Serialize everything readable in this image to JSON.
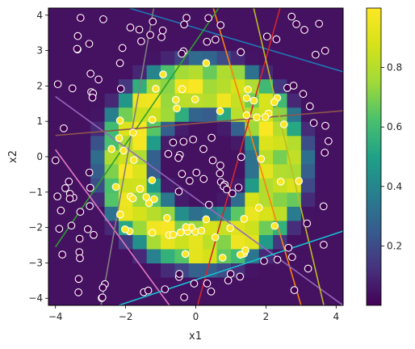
{
  "chart_data": {
    "type": "heatmap",
    "title": "",
    "xlabel": "x1",
    "ylabel": "x2",
    "xlim": [
      -4.2,
      4.2
    ],
    "ylim": [
      -4.2,
      4.2
    ],
    "x_ticks": [
      -4,
      -2,
      0,
      2,
      4
    ],
    "y_ticks": [
      -4,
      -3,
      -2,
      -1,
      0,
      1,
      2,
      3,
      4
    ],
    "x_tick_labels": [
      "−4",
      "−2",
      "0",
      "2",
      "4"
    ],
    "y_tick_labels": [
      "−4",
      "−3",
      "−2",
      "−1",
      "0",
      "1",
      "2",
      "3",
      "4"
    ],
    "colorbar": {
      "colormap": "viridis",
      "range": [
        0.0,
        1.0
      ],
      "ticks": [
        0.2,
        0.4,
        0.6,
        0.8
      ],
      "tick_labels": [
        "0.2",
        "0.4",
        "0.6",
        "0.8"
      ]
    },
    "heatmap_grid": {
      "cells_per_axis": 21,
      "description_values": "model output over a ring-shaped region; high (yellow) inside the ring, low (purple) elsewhere",
      "ring": {
        "cx": 0.2,
        "cy": -0.2,
        "r_inner": 1.4,
        "r_outer": 3.0
      }
    },
    "points": {
      "marker": "hollow circle",
      "inside_ring_fill": "#fde725",
      "outside_ring_fill": "#440154",
      "edge_color": "#ffffff",
      "count_outside": 120,
      "count_inside": 60,
      "seed": 7
    },
    "decision_lines": [
      {
        "color": "#1f77b4",
        "p1": [
          -1.9,
          4.2
        ],
        "p2": [
          4.2,
          2.4
        ]
      },
      {
        "color": "#ff7f0e",
        "p1": [
          0.5,
          4.2
        ],
        "p2": [
          3.0,
          -4.2
        ]
      },
      {
        "color": "#2ca02c",
        "p1": [
          -4.0,
          -2.55
        ],
        "p2": [
          0.65,
          4.2
        ]
      },
      {
        "color": "#d62728",
        "p1": [
          2.4,
          4.2
        ],
        "p2": [
          0.05,
          -4.2
        ]
      },
      {
        "color": "#9467bd",
        "p1": [
          -4.0,
          1.7
        ],
        "p2": [
          4.2,
          -4.2
        ]
      },
      {
        "color": "#8c564b",
        "p1": [
          -4.0,
          0.6
        ],
        "p2": [
          4.2,
          1.3
        ]
      },
      {
        "color": "#e377c2",
        "p1": [
          -4.0,
          0.2
        ],
        "p2": [
          -0.75,
          -4.2
        ]
      },
      {
        "color": "#7f7f7f",
        "p1": [
          -2.7,
          -4.2
        ],
        "p2": [
          -1.2,
          4.2
        ]
      },
      {
        "color": "#bcbd22",
        "p1": [
          1.65,
          4.2
        ],
        "p2": [
          3.65,
          -4.2
        ]
      },
      {
        "color": "#17becf",
        "p1": [
          -2.2,
          -4.2
        ],
        "p2": [
          4.2,
          -2.1
        ]
      }
    ]
  }
}
